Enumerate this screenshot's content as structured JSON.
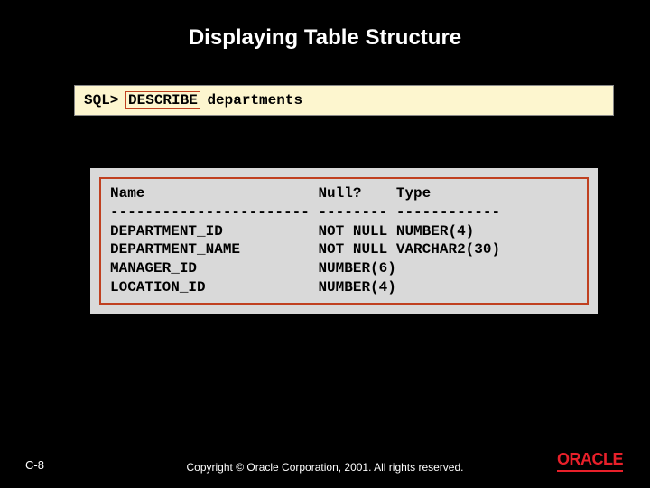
{
  "title": "Displaying Table Structure",
  "command": {
    "prompt": "SQL>",
    "keyword": "DESCRIBE",
    "arg": "departments"
  },
  "output": {
    "header": {
      "name": "Name",
      "nullq": "Null?",
      "type": "Type"
    },
    "separator": {
      "name": "-----------------------",
      "nullq": "--------",
      "type": "------------"
    },
    "rows": [
      {
        "name": "DEPARTMENT_ID",
        "nullq": "NOT NULL",
        "type": "NUMBER(4)"
      },
      {
        "name": "DEPARTMENT_NAME",
        "nullq": "NOT NULL",
        "type": "VARCHAR2(30)"
      },
      {
        "name": "MANAGER_ID",
        "nullq": "NUMBER(6)",
        "type": ""
      },
      {
        "name": "LOCATION_ID",
        "nullq": "NUMBER(4)",
        "type": ""
      }
    ],
    "col_widths": {
      "name": 24,
      "nullq": 9
    }
  },
  "footer": {
    "page": "C-8",
    "copyright": "Copyright © Oracle Corporation, 2001. All rights reserved.",
    "logo": "ORACLE"
  },
  "colors": {
    "background": "#000000",
    "command_bg": "#fdf6cf",
    "output_bg": "#d9d9d9",
    "highlight_border": "#c04020",
    "logo": "#e8202a",
    "text_light": "#ffffff",
    "text_dark": "#000000"
  }
}
